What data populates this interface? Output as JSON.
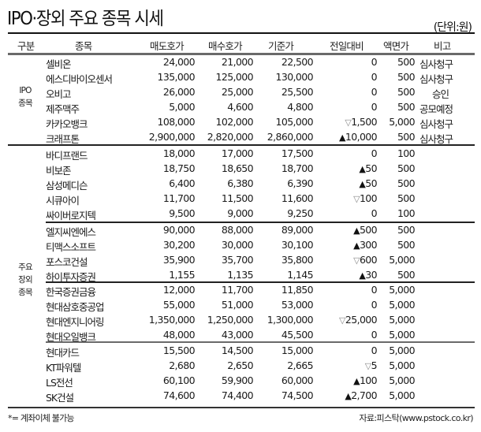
{
  "header": {
    "title": "IPO·장외 주요 종목 시세",
    "unit": "(단위:원)"
  },
  "columns": {
    "group": "구분",
    "name": "종목",
    "ask": "매도호가",
    "bid": "매수호가",
    "base": "기준가",
    "change": "전일대비",
    "par": "액면가",
    "note": "비고"
  },
  "groups": {
    "ipo": {
      "line1": "IPO",
      "line2": "종목"
    },
    "otc": {
      "line1": "주요",
      "line2": "장외",
      "line3": "종목"
    }
  },
  "symbols": {
    "up": "▲",
    "down": "▽"
  },
  "rows": [
    {
      "name": "셀비온",
      "ask": "24,000",
      "bid": "21,000",
      "base": "22,500",
      "dir": "",
      "change": "0",
      "par": "500",
      "note": "심사청구"
    },
    {
      "name": "에스디바이오센서",
      "ask": "135,000",
      "bid": "125,000",
      "base": "130,000",
      "dir": "",
      "change": "0",
      "par": "500",
      "note": "심사청구"
    },
    {
      "name": "오비고",
      "ask": "26,000",
      "bid": "25,000",
      "base": "25,500",
      "dir": "",
      "change": "0",
      "par": "500",
      "note": "승인"
    },
    {
      "name": "제주맥주",
      "ask": "5,000",
      "bid": "4,600",
      "base": "4,800",
      "dir": "",
      "change": "0",
      "par": "500",
      "note": "공모예정"
    },
    {
      "name": "카카오뱅크",
      "ask": "108,000",
      "bid": "102,000",
      "base": "105,000",
      "dir": "▽",
      "change": "1,500",
      "par": "5,000",
      "note": "심사청구"
    },
    {
      "name": "크래프톤",
      "ask": "2,900,000",
      "bid": "2,820,000",
      "base": "2,860,000",
      "dir": "▲",
      "change": "10,000",
      "par": "500",
      "note": "심사청구"
    },
    {
      "name": "바디프랜드",
      "ask": "18,000",
      "bid": "17,000",
      "base": "17,500",
      "dir": "",
      "change": "0",
      "par": "100",
      "note": ""
    },
    {
      "name": "비보존",
      "ask": "18,750",
      "bid": "18,650",
      "base": "18,700",
      "dir": "▲",
      "change": "50",
      "par": "500",
      "note": ""
    },
    {
      "name": "삼성메디슨",
      "ask": "6,400",
      "bid": "6,380",
      "base": "6,390",
      "dir": "▲",
      "change": "50",
      "par": "500",
      "note": ""
    },
    {
      "name": "시큐아이",
      "ask": "11,700",
      "bid": "11,500",
      "base": "11,600",
      "dir": "▽",
      "change": "100",
      "par": "500",
      "note": ""
    },
    {
      "name": "싸이버로지텍",
      "ask": "9,500",
      "bid": "9,000",
      "base": "9,250",
      "dir": "",
      "change": "0",
      "par": "100",
      "note": ""
    },
    {
      "name": "엘지씨엔에스",
      "ask": "90,000",
      "bid": "88,000",
      "base": "89,000",
      "dir": "▲",
      "change": "500",
      "par": "500",
      "note": ""
    },
    {
      "name": "티맥스소프트",
      "ask": "30,200",
      "bid": "30,000",
      "base": "30,100",
      "dir": "▲",
      "change": "300",
      "par": "500",
      "note": ""
    },
    {
      "name": "포스코건설",
      "ask": "35,900",
      "bid": "35,700",
      "base": "35,800",
      "dir": "▽",
      "change": "600",
      "par": "5,000",
      "note": ""
    },
    {
      "name": "하이투자증권",
      "ask": "1,155",
      "bid": "1,135",
      "base": "1,145",
      "dir": "▲",
      "change": "30",
      "par": "500",
      "note": ""
    },
    {
      "name": "한국증권금융",
      "ask": "12,000",
      "bid": "11,700",
      "base": "11,850",
      "dir": "",
      "change": "0",
      "par": "5,000",
      "note": ""
    },
    {
      "name": "현대삼호중공업",
      "ask": "55,000",
      "bid": "51,000",
      "base": "53,000",
      "dir": "",
      "change": "0",
      "par": "5,000",
      "note": ""
    },
    {
      "name": "현대엔지니어링",
      "ask": "1,350,000",
      "bid": "1,250,000",
      "base": "1,300,000",
      "dir": "▽",
      "change": "25,000",
      "par": "5,000",
      "note": ""
    },
    {
      "name": "현대오일뱅크",
      "ask": "48,000",
      "bid": "43,000",
      "base": "45,500",
      "dir": "",
      "change": "0",
      "par": "5,000",
      "note": ""
    },
    {
      "name": "현대카드",
      "ask": "15,500",
      "bid": "14,500",
      "base": "15,000",
      "dir": "",
      "change": "0",
      "par": "5,000",
      "note": ""
    },
    {
      "name": "KT파워텔",
      "ask": "2,680",
      "bid": "2,650",
      "base": "2,665",
      "dir": "▽",
      "change": "5",
      "par": "5,000",
      "note": ""
    },
    {
      "name": "LS전선",
      "ask": "60,100",
      "bid": "59,900",
      "base": "60,000",
      "dir": "▲",
      "change": "100",
      "par": "5,000",
      "note": ""
    },
    {
      "name": "SK건설",
      "ask": "74,600",
      "bid": "74,400",
      "base": "74,500",
      "dir": "▲",
      "change": "2,700",
      "par": "5,000",
      "note": ""
    }
  ],
  "footer": {
    "footnote": "*= 계좌이체 불가능",
    "source": "자료:피스탁(www.pstock.co.kr)"
  }
}
